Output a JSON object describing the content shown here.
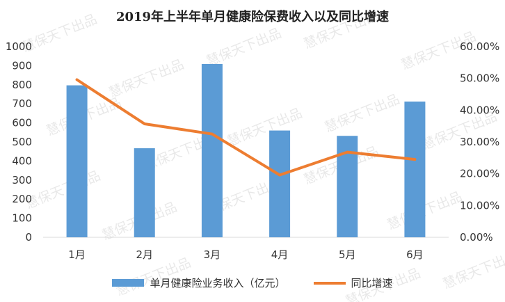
{
  "watermark_text": "慧保天下出品",
  "chart_data": {
    "type": "bar",
    "title": "2019年上半年单月健康险保费收入以及同比增速",
    "categories": [
      "1月",
      "2月",
      "3月",
      "4月",
      "5月",
      "6月"
    ],
    "series": [
      {
        "name": "单月健康险业务收入（亿元）",
        "type": "bar",
        "axis": "left",
        "values": [
          797,
          467,
          909,
          560,
          532,
          712
        ],
        "color": "#5b9bd5"
      },
      {
        "name": "同比增速",
        "type": "line",
        "axis": "right",
        "values": [
          0.496,
          0.357,
          0.325,
          0.196,
          0.268,
          0.245
        ],
        "color": "#ed7d31"
      }
    ],
    "y_left": {
      "ylim": [
        0,
        1000
      ],
      "ticks": [
        0,
        100,
        200,
        300,
        400,
        500,
        600,
        700,
        800,
        900,
        1000
      ],
      "tick_labels": [
        "0",
        "100",
        "200",
        "300",
        "400",
        "500",
        "600",
        "700",
        "800",
        "900",
        "1000"
      ]
    },
    "y_right": {
      "ylim": [
        0,
        0.6
      ],
      "ticks": [
        0,
        0.1,
        0.2,
        0.3,
        0.4,
        0.5,
        0.6
      ],
      "tick_labels": [
        "0.00%",
        "10.00%",
        "20.00%",
        "30.00%",
        "40.00%",
        "50.00%",
        "60.00%"
      ]
    },
    "grid": false,
    "legend_position": "bottom"
  }
}
